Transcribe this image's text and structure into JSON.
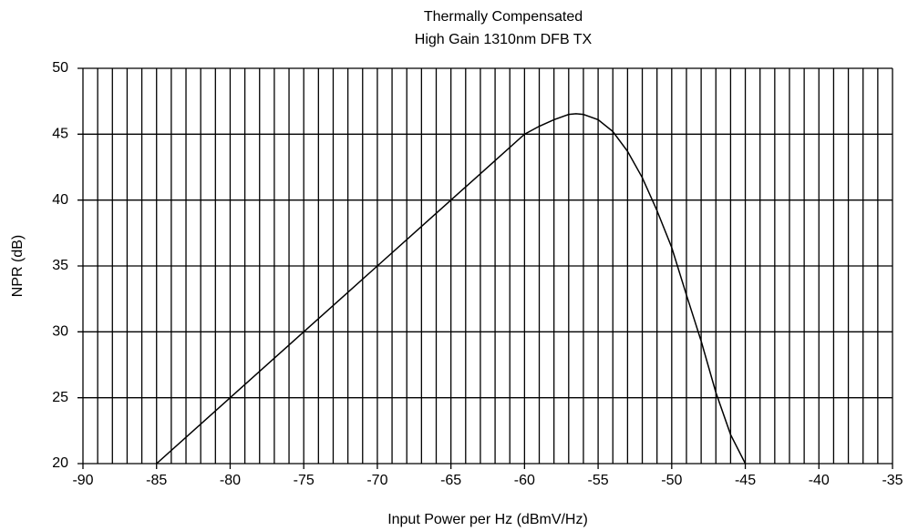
{
  "chart_data": {
    "type": "line",
    "title": "Thermally Compensated",
    "subtitle": "High Gain 1310nm DFB TX",
    "x_label": "Input Power per Hz (dBmV/Hz)",
    "y_label": "NPR (dB)",
    "xlim": [
      -90,
      -35
    ],
    "ylim": [
      20,
      50
    ],
    "xticks": [
      -90,
      -85,
      -80,
      -75,
      -70,
      -65,
      -60,
      -55,
      -50,
      -45,
      -40,
      -35
    ],
    "yticks": [
      20,
      25,
      30,
      35,
      40,
      45,
      50
    ],
    "x_minor_ticks": [
      -89,
      -88,
      -87,
      -86,
      -84,
      -83,
      -82,
      -81,
      -79,
      -78,
      -77,
      -76,
      -74,
      -73,
      -72,
      -71,
      -69,
      -68,
      -67,
      -66,
      -64,
      -63,
      -62,
      -61,
      -59,
      -58,
      -57,
      -56,
      -54,
      -53,
      -52,
      -51,
      -49,
      -48,
      -47,
      -46,
      -44,
      -43,
      -42,
      -41,
      -39,
      -38,
      -37,
      -36
    ],
    "grid": true,
    "series": [
      {
        "name": "NPR",
        "color": "#000000",
        "x": [
          -85,
          -80,
          -75,
          -70,
          -65,
          -62,
          -60,
          -59,
          -58,
          -57,
          -56.5,
          -56,
          -55,
          -54,
          -53,
          -52,
          -51,
          -50,
          -49,
          -48,
          -47,
          -46,
          -45
        ],
        "values": [
          20,
          25,
          30,
          35,
          40,
          43,
          45,
          45.6,
          46.1,
          46.5,
          46.55,
          46.5,
          46.1,
          45.2,
          43.7,
          41.7,
          39.2,
          36.4,
          32.8,
          29.3,
          25.4,
          22.2,
          20
        ]
      }
    ]
  }
}
